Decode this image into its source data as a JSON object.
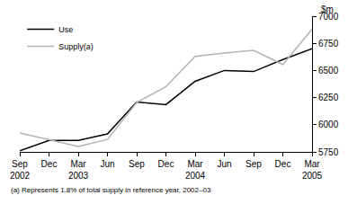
{
  "chart_data": {
    "type": "line",
    "categories": [
      "Sep 2002",
      "Dec",
      "Mar 2003",
      "Jun",
      "Sep",
      "Dec",
      "Mar 2004",
      "Jun",
      "Sep",
      "Dec",
      "Mar 2005"
    ],
    "series": [
      {
        "name": "Use",
        "color": "#000000",
        "values": [
          5760,
          5855,
          5855,
          5915,
          6210,
          6185,
          6400,
          6500,
          6490,
          6600,
          6700
        ]
      },
      {
        "name": "Supply(a)",
        "color": "#b3b3b3",
        "values": [
          5925,
          5860,
          5800,
          5865,
          6205,
          6350,
          6630,
          6660,
          6685,
          6555,
          6880
        ]
      }
    ],
    "y_label": "$m",
    "ylim": [
      5750,
      7000
    ],
    "yticks": [
      5750,
      6000,
      6250,
      6500,
      6750,
      7000
    ],
    "grid": false,
    "legend": "top-left",
    "annotations": [
      "(a) Represents 1.8% of total supply in reference year, 2002–03"
    ]
  }
}
